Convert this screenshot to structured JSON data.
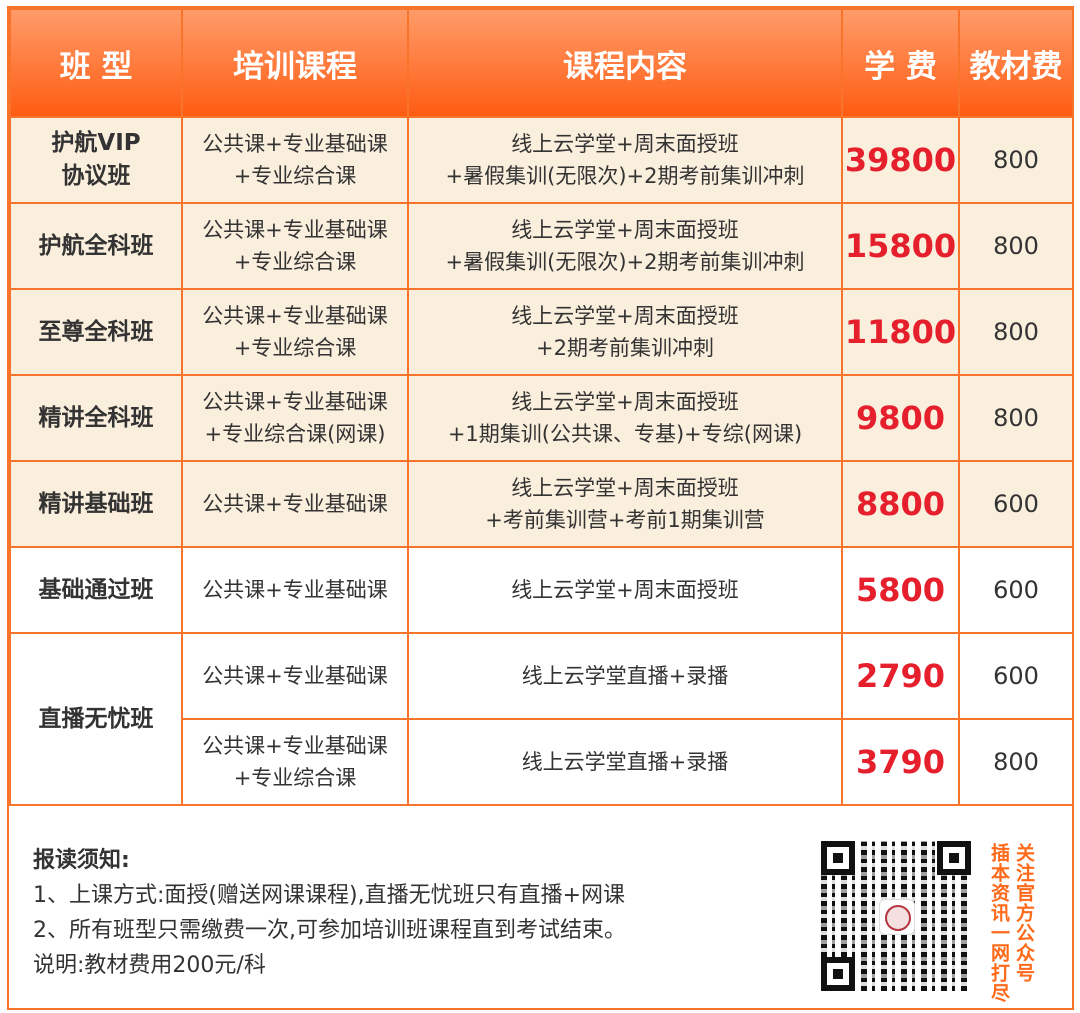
{
  "colors": {
    "accent": "#f7742a",
    "price": "#e61f2c",
    "row_bg": "#faeedd"
  },
  "headers": [
    "班 型",
    "培训课程",
    "课程内容",
    "学 费",
    "教材费"
  ],
  "rows": [
    {
      "name": [
        "护航VIP",
        "协议班"
      ],
      "courses": [
        "公共课+专业基础课",
        "+专业综合课"
      ],
      "content": [
        "线上云学堂+周末面授班",
        "+暑假集训(无限次)+2期考前集训冲刺"
      ],
      "fee": "39800",
      "book": "800"
    },
    {
      "name": [
        "护航全科班"
      ],
      "courses": [
        "公共课+专业基础课",
        "+专业综合课"
      ],
      "content": [
        "线上云学堂+周末面授班",
        "+暑假集训(无限次)+2期考前集训冲刺"
      ],
      "fee": "15800",
      "book": "800"
    },
    {
      "name": [
        "至尊全科班"
      ],
      "courses": [
        "公共课+专业基础课",
        "+专业综合课"
      ],
      "content": [
        "线上云学堂+周末面授班",
        "+2期考前集训冲刺"
      ],
      "fee": "11800",
      "book": "800"
    },
    {
      "name": [
        "精讲全科班"
      ],
      "courses": [
        "公共课+专业基础课",
        "+专业综合课(网课)"
      ],
      "content": [
        "线上云学堂+周末面授班",
        "+1期集训(公共课、专基)+专综(网课)"
      ],
      "fee": "9800",
      "book": "800"
    },
    {
      "name": [
        "精讲基础班"
      ],
      "courses": [
        "公共课+专业基础课"
      ],
      "content": [
        "线上云学堂+周末面授班",
        "+考前集训营+考前1期集训营"
      ],
      "fee": "8800",
      "book": "600"
    },
    {
      "name": [
        "基础通过班"
      ],
      "courses": [
        "公共课+专业基础课"
      ],
      "content": [
        "线上云学堂+周末面授班"
      ],
      "fee": "5800",
      "book": "600"
    },
    {
      "name": [
        "直播无忧班"
      ],
      "courses": [
        "公共课+专业基础课"
      ],
      "content": [
        "线上云学堂直播+录播"
      ],
      "fee": "2790",
      "book": "600"
    },
    {
      "courses": [
        "公共课+专业基础课",
        "+专业综合课"
      ],
      "content": [
        "线上云学堂直播+录播"
      ],
      "fee": "3790",
      "book": "800"
    }
  ],
  "notes": {
    "title": "报读须知:",
    "items": [
      "1、上课方式:面授(赠送网课课程),直播无忧班只有直播+网课",
      "2、所有班型只需缴费一次,可参加培训班课程直到考试结束。"
    ],
    "remark": "说明:教材费用200元/科"
  },
  "qr": {
    "icon": "qr-code-icon",
    "text_right": "关注官方公众号",
    "text_left": "插本资讯一网打尽"
  }
}
